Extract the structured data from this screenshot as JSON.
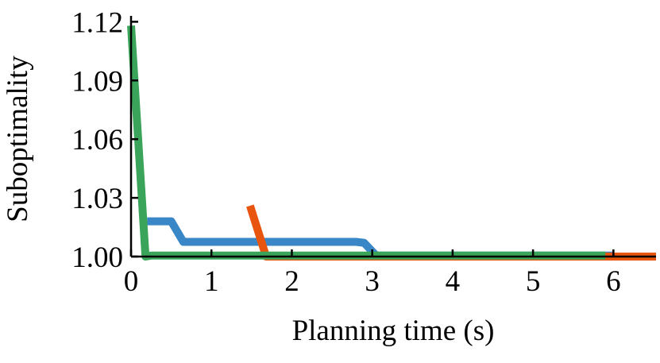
{
  "chart_data": {
    "type": "line",
    "xlabel": "Planning time (s)",
    "ylabel": "Suboptimality",
    "xlim": [
      0,
      6.53
    ],
    "xticks": [
      0,
      1,
      2,
      3,
      4,
      5,
      6
    ],
    "ylim": [
      1.0,
      1.123
    ],
    "yticks": [
      {
        "value": 1.0,
        "label": "1.00"
      },
      1.03,
      1.06,
      1.09,
      1.12
    ],
    "series": [
      {
        "color": "#3a87c7",
        "x": [
          0.2,
          0.5,
          0.65,
          2.8,
          2.9,
          3.05,
          6.0
        ],
        "values": [
          1.018,
          1.018,
          1.0075,
          1.0075,
          1.007,
          1.0005,
          1.0005
        ]
      },
      {
        "color": "#e8550f",
        "x": [
          1.48,
          1.68,
          6.53
        ],
        "values": [
          1.026,
          1.0,
          1.0
        ]
      },
      {
        "color": "#3aa55a",
        "x": [
          0.0,
          0.18,
          0.25,
          5.9
        ],
        "values": [
          1.118,
          1.0,
          1.0005,
          1.0005
        ]
      }
    ]
  }
}
